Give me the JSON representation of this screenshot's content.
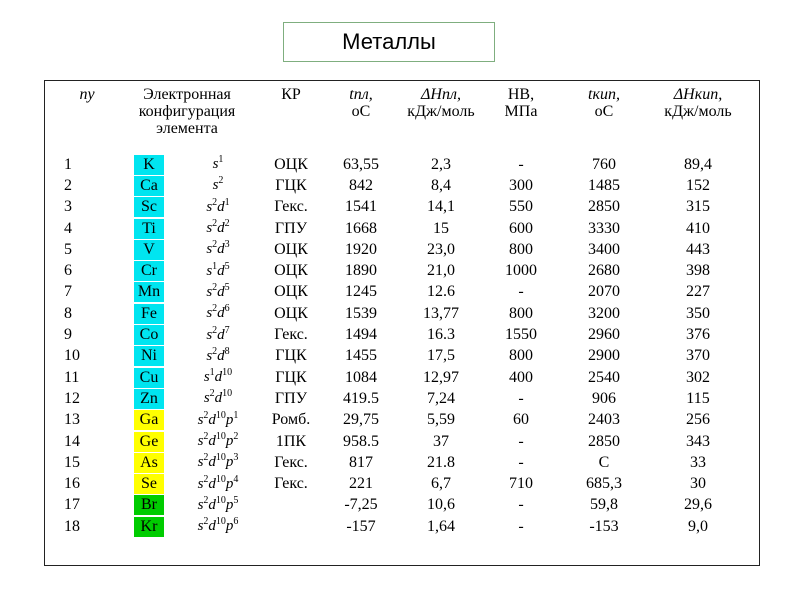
{
  "title": "Металлы",
  "headers": {
    "n": "nу",
    "config": "Электронная конфигурация элемента",
    "kr": "КР",
    "tpl": "tпл,",
    "tpl_unit": "oC",
    "dhpl": "ΔHпл,",
    "dhpl_unit": "кДж/моль",
    "hb": "HB,",
    "hb_unit": "МПа",
    "tkip": "tкип,",
    "tkip_unit": "oC",
    "dhkip": "ΔHкип,",
    "dhkip_unit": "кДж/моль"
  },
  "colors": {
    "cyan": "#00e5f0",
    "yellow": "#ffff00",
    "green": "#00cc00"
  },
  "rows": [
    {
      "n": "1",
      "el": "K",
      "color": "cyan",
      "cfg": [
        [
          "s",
          "1"
        ]
      ],
      "kr": "ОЦК",
      "tpl": "63,55",
      "dhpl": "2,3",
      "hb": "-",
      "tkip": "760",
      "dhkip": "89,4"
    },
    {
      "n": "2",
      "el": "Ca",
      "color": "cyan",
      "cfg": [
        [
          "s",
          "2"
        ]
      ],
      "kr": "ГЦК",
      "tpl": "842",
      "dhpl": "8,4",
      "hb": "300",
      "tkip": "1485",
      "dhkip": "152"
    },
    {
      "n": "3",
      "el": "Sc",
      "color": "cyan",
      "cfg": [
        [
          "s",
          "2"
        ],
        [
          "d",
          "1"
        ]
      ],
      "kr": "Гекс.",
      "tpl": "1541",
      "dhpl": "14,1",
      "hb": "550",
      "tkip": "2850",
      "dhkip": "315"
    },
    {
      "n": "4",
      "el": "Ti",
      "color": "cyan",
      "cfg": [
        [
          "s",
          "2"
        ],
        [
          "d",
          "2"
        ]
      ],
      "kr": "ГПУ",
      "tpl": "1668",
      "dhpl": "15",
      "hb": "600",
      "tkip": "3330",
      "dhkip": "410"
    },
    {
      "n": "5",
      "el": "V",
      "color": "cyan",
      "cfg": [
        [
          "s",
          "2"
        ],
        [
          "d",
          "3"
        ]
      ],
      "kr": "ОЦК",
      "tpl": "1920",
      "dhpl": "23,0",
      "hb": "800",
      "tkip": "3400",
      "dhkip": "443"
    },
    {
      "n": "6",
      "el": "Cr",
      "color": "cyan",
      "cfg": [
        [
          "s",
          "1"
        ],
        [
          "d",
          "5"
        ]
      ],
      "kr": "ОЦК",
      "tpl": "1890",
      "dhpl": "21,0",
      "hb": "1000",
      "tkip": "2680",
      "dhkip": "398"
    },
    {
      "n": "7",
      "el": "Mn",
      "color": "cyan",
      "cfg": [
        [
          "s",
          "2"
        ],
        [
          "d",
          "5"
        ]
      ],
      "kr": "ОЦК",
      "tpl": "1245",
      "dhpl": "12.6",
      "hb": "-",
      "tkip": "2070",
      "dhkip": "227"
    },
    {
      "n": "8",
      "el": "Fe",
      "color": "cyan",
      "cfg": [
        [
          "s",
          "2"
        ],
        [
          "d",
          "6"
        ]
      ],
      "kr": "ОЦК",
      "tpl": "1539",
      "dhpl": "13,77",
      "hb": "800",
      "tkip": "3200",
      "dhkip": "350"
    },
    {
      "n": "9",
      "el": "Co",
      "color": "cyan",
      "cfg": [
        [
          "s",
          "2"
        ],
        [
          "d",
          "7"
        ]
      ],
      "kr": "Гекс.",
      "tpl": "1494",
      "dhpl": "16.3",
      "hb": "1550",
      "tkip": "2960",
      "dhkip": "376"
    },
    {
      "n": "10",
      "el": "Ni",
      "color": "cyan",
      "cfg": [
        [
          "s",
          "2"
        ],
        [
          "d",
          "8"
        ]
      ],
      "kr": "ГЦК",
      "tpl": "1455",
      "dhpl": "17,5",
      "hb": "800",
      "tkip": "2900",
      "dhkip": "370"
    },
    {
      "n": "11",
      "el": "Cu",
      "color": "cyan",
      "cfg": [
        [
          "s",
          "1"
        ],
        [
          "d",
          "10"
        ]
      ],
      "kr": "ГЦК",
      "tpl": "1084",
      "dhpl": "12,97",
      "hb": "400",
      "tkip": "2540",
      "dhkip": "302"
    },
    {
      "n": "12",
      "el": "Zn",
      "color": "cyan",
      "cfg": [
        [
          "s",
          "2"
        ],
        [
          "d",
          "10"
        ]
      ],
      "kr": "ГПУ",
      "tpl": "419.5",
      "dhpl": "7,24",
      "hb": "-",
      "tkip": "906",
      "dhkip": "115"
    },
    {
      "n": "13",
      "el": "Ga",
      "color": "yellow",
      "cfg": [
        [
          "s",
          "2"
        ],
        [
          "d",
          "10"
        ],
        [
          "p",
          "1"
        ]
      ],
      "kr": "Ромб.",
      "tpl": "29,75",
      "dhpl": "5,59",
      "hb": "60",
      "tkip": "2403",
      "dhkip": "256"
    },
    {
      "n": "14",
      "el": "Ge",
      "color": "yellow",
      "cfg": [
        [
          "s",
          "2"
        ],
        [
          "d",
          "10"
        ],
        [
          "p",
          "2"
        ]
      ],
      "kr": "1ПК",
      "tpl": "958.5",
      "dhpl": "37",
      "hb": "-",
      "tkip": "2850",
      "dhkip": "343"
    },
    {
      "n": "15",
      "el": "As",
      "color": "yellow",
      "cfg": [
        [
          "s",
          "2"
        ],
        [
          "d",
          "10"
        ],
        [
          "p",
          "3"
        ]
      ],
      "kr": "Гекс.",
      "tpl": "817",
      "dhpl": "21.8",
      "hb": "-",
      "tkip": "С",
      "dhkip": "33"
    },
    {
      "n": "16",
      "el": "Se",
      "color": "yellow",
      "cfg": [
        [
          "s",
          "2"
        ],
        [
          "d",
          "10"
        ],
        [
          "p",
          "4"
        ]
      ],
      "kr": "Гекс.",
      "tpl": "221",
      "dhpl": "6,7",
      "hb": "710",
      "tkip": "685,3",
      "dhkip": "30"
    },
    {
      "n": "17",
      "el": "Br",
      "color": "green",
      "cfg": [
        [
          "s",
          "2"
        ],
        [
          "d",
          "10"
        ],
        [
          "p",
          "5"
        ]
      ],
      "kr": "",
      "tpl": "-7,25",
      "dhpl": "10,6",
      "hb": "-",
      "tkip": "59,8",
      "dhkip": "29,6"
    },
    {
      "n": "18",
      "el": "Kr",
      "color": "green",
      "cfg": [
        [
          "s",
          "2"
        ],
        [
          "d",
          "10"
        ],
        [
          "p",
          "6"
        ]
      ],
      "kr": "",
      "tpl": "-157",
      "dhpl": "1,64",
      "hb": "-",
      "tkip": "-153",
      "dhkip": "9,0"
    }
  ]
}
